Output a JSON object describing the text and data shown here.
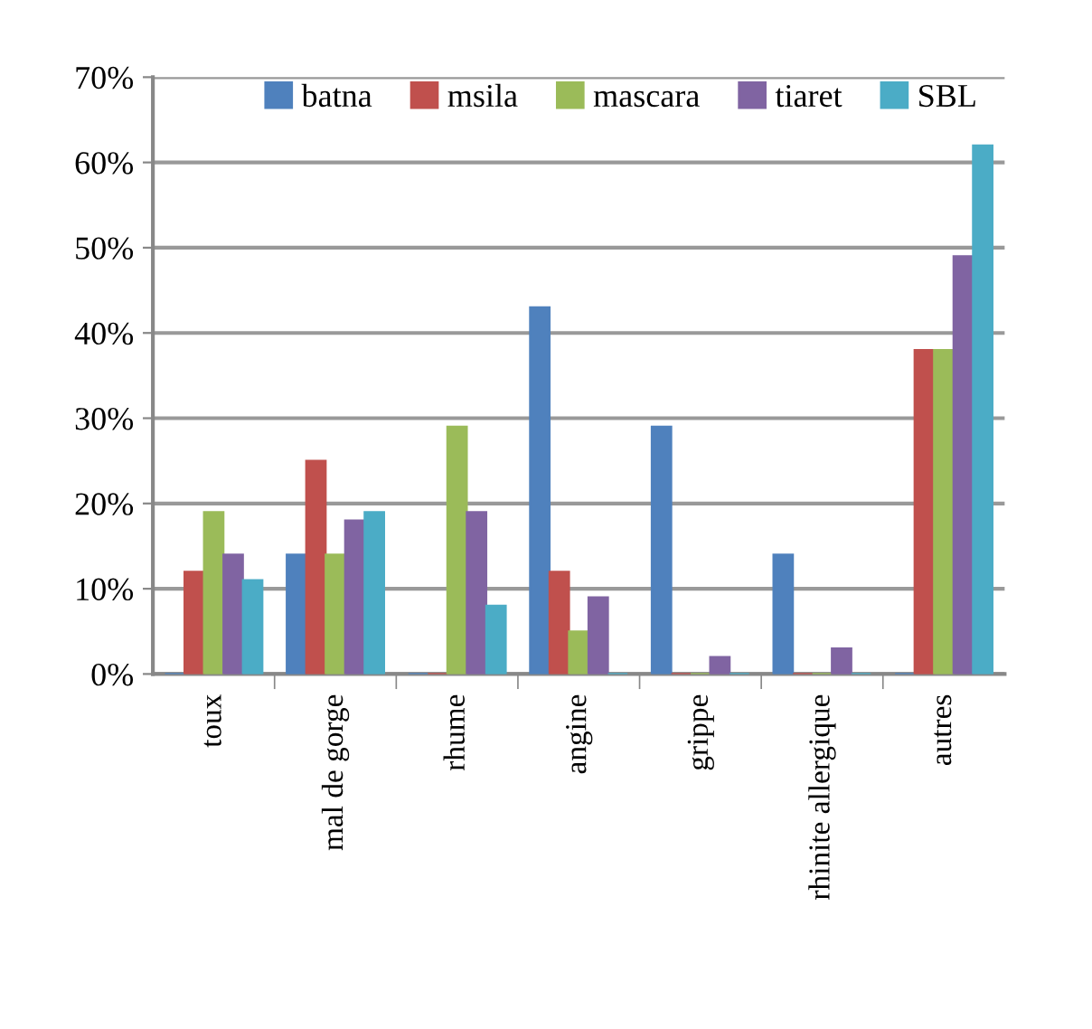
{
  "chart_data": {
    "type": "bar",
    "categories": [
      "toux",
      "mal de gorge",
      "rhume",
      "angine",
      "grippe",
      "rhinite allergique",
      "autres"
    ],
    "series": [
      {
        "name": "batna",
        "color": "#4f81bd",
        "values": [
          0,
          14,
          0,
          43,
          29,
          14,
          0
        ]
      },
      {
        "name": "msila",
        "color": "#c0504d",
        "values": [
          12,
          25,
          0,
          12,
          0,
          0,
          38
        ]
      },
      {
        "name": "mascara",
        "color": "#9bbb59",
        "values": [
          19,
          14,
          29,
          5,
          0,
          0,
          38
        ]
      },
      {
        "name": "tiaret",
        "color": "#8064a2",
        "values": [
          14,
          18,
          19,
          9,
          2,
          3,
          49
        ]
      },
      {
        "name": "SBL",
        "color": "#4bacc6",
        "values": [
          11,
          19,
          8,
          0,
          0,
          0,
          62
        ]
      }
    ],
    "ylim": [
      0,
      70
    ],
    "yticks": [
      {
        "value": 0,
        "label": "0%"
      },
      {
        "value": 10,
        "label": "10%"
      },
      {
        "value": 20,
        "label": "20%"
      },
      {
        "value": 30,
        "label": "30%"
      },
      {
        "value": 40,
        "label": "40%"
      },
      {
        "value": 50,
        "label": "50%"
      },
      {
        "value": 60,
        "label": "60%"
      },
      {
        "value": 70,
        "label": "70%"
      }
    ],
    "grid": "y",
    "legend": "top"
  }
}
